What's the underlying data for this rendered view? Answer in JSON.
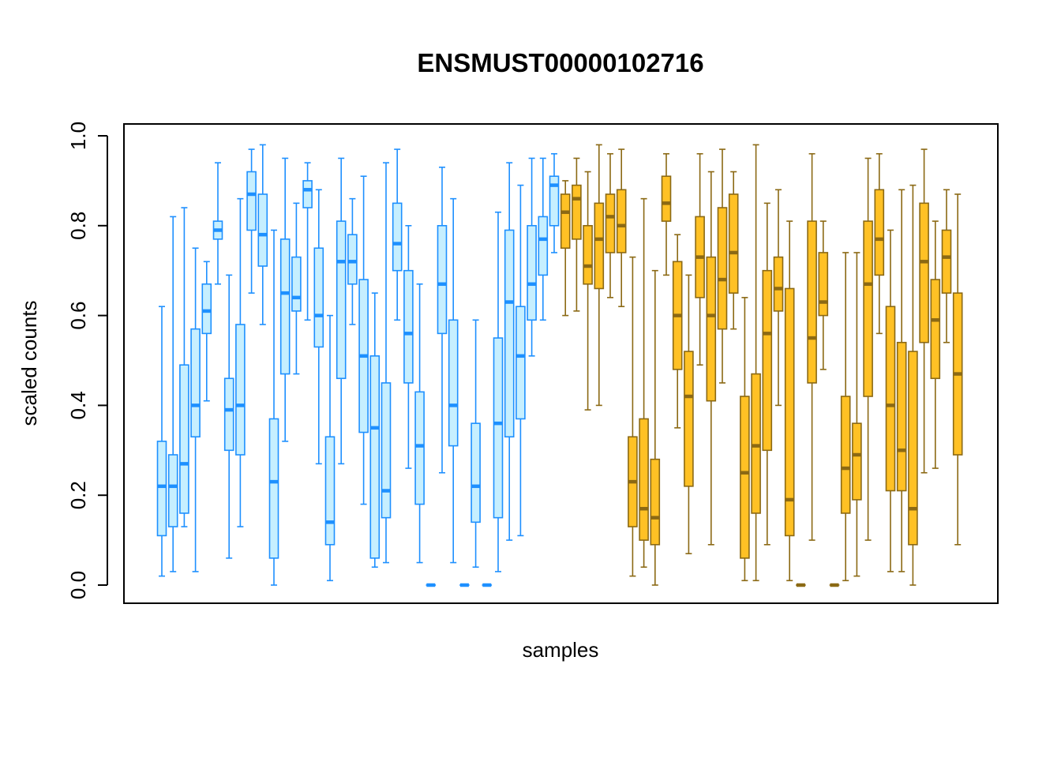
{
  "chart_data": {
    "type": "boxplot",
    "title": "ENSMUST00000102716",
    "xlabel": "samples",
    "ylabel": "scaled counts",
    "ylim": [
      0,
      1
    ],
    "yticks": [
      "0.0",
      "0.2",
      "0.4",
      "0.6",
      "0.8",
      "1.0"
    ],
    "grid": false,
    "legend": "none",
    "colors": {
      "group1_fill": "#c6efff",
      "group1_line": "#1e90ff",
      "group2_fill": "#ffc125",
      "group2_line": "#8b6914"
    },
    "series": [
      {
        "group": 1,
        "boxes": [
          {
            "min": 0.02,
            "q1": 0.11,
            "median": 0.22,
            "q3": 0.32,
            "max": 0.62
          },
          {
            "min": 0.03,
            "q1": 0.13,
            "median": 0.22,
            "q3": 0.29,
            "max": 0.82
          },
          {
            "min": 0.13,
            "q1": 0.16,
            "median": 0.27,
            "q3": 0.49,
            "max": 0.84
          },
          {
            "min": 0.03,
            "q1": 0.33,
            "median": 0.4,
            "q3": 0.57,
            "max": 0.75
          },
          {
            "min": 0.41,
            "q1": 0.56,
            "median": 0.61,
            "q3": 0.67,
            "max": 0.72
          },
          {
            "min": 0.67,
            "q1": 0.77,
            "median": 0.79,
            "q3": 0.81,
            "max": 0.94
          },
          {
            "min": 0.06,
            "q1": 0.3,
            "median": 0.39,
            "q3": 0.46,
            "max": 0.69
          },
          {
            "min": 0.13,
            "q1": 0.29,
            "median": 0.4,
            "q3": 0.58,
            "max": 0.86
          },
          {
            "min": 0.65,
            "q1": 0.79,
            "median": 0.87,
            "q3": 0.92,
            "max": 0.97
          },
          {
            "min": 0.58,
            "q1": 0.71,
            "median": 0.78,
            "q3": 0.87,
            "max": 0.98
          },
          {
            "min": 0.0,
            "q1": 0.06,
            "median": 0.23,
            "q3": 0.37,
            "max": 0.79
          },
          {
            "min": 0.32,
            "q1": 0.47,
            "median": 0.65,
            "q3": 0.77,
            "max": 0.95
          },
          {
            "min": 0.47,
            "q1": 0.61,
            "median": 0.64,
            "q3": 0.73,
            "max": 0.85
          },
          {
            "min": 0.59,
            "q1": 0.84,
            "median": 0.88,
            "q3": 0.9,
            "max": 0.94
          },
          {
            "min": 0.27,
            "q1": 0.53,
            "median": 0.6,
            "q3": 0.75,
            "max": 0.88
          },
          {
            "min": 0.01,
            "q1": 0.09,
            "median": 0.14,
            "q3": 0.33,
            "max": 0.6
          },
          {
            "min": 0.27,
            "q1": 0.46,
            "median": 0.72,
            "q3": 0.81,
            "max": 0.95
          },
          {
            "min": 0.58,
            "q1": 0.67,
            "median": 0.72,
            "q3": 0.78,
            "max": 0.86
          },
          {
            "min": 0.18,
            "q1": 0.34,
            "median": 0.51,
            "q3": 0.68,
            "max": 0.91
          },
          {
            "min": 0.04,
            "q1": 0.06,
            "median": 0.35,
            "q3": 0.51,
            "max": 0.65
          },
          {
            "min": 0.05,
            "q1": 0.15,
            "median": 0.21,
            "q3": 0.45,
            "max": 0.94
          },
          {
            "min": 0.59,
            "q1": 0.7,
            "median": 0.76,
            "q3": 0.85,
            "max": 0.97
          },
          {
            "min": 0.26,
            "q1": 0.45,
            "median": 0.56,
            "q3": 0.7,
            "max": 0.8
          },
          {
            "min": 0.05,
            "q1": 0.18,
            "median": 0.31,
            "q3": 0.43,
            "max": 0.67
          },
          {
            "min": 0.0,
            "q1": 0.0,
            "median": 0.0,
            "q3": 0.0,
            "max": 0.0
          },
          {
            "min": 0.25,
            "q1": 0.56,
            "median": 0.67,
            "q3": 0.8,
            "max": 0.93
          },
          {
            "min": 0.05,
            "q1": 0.31,
            "median": 0.4,
            "q3": 0.59,
            "max": 0.86
          },
          {
            "min": 0.0,
            "q1": 0.0,
            "median": 0.0,
            "q3": 0.0,
            "max": 0.0
          },
          {
            "min": 0.04,
            "q1": 0.14,
            "median": 0.22,
            "q3": 0.36,
            "max": 0.59
          },
          {
            "min": 0.0,
            "q1": 0.0,
            "median": 0.0,
            "q3": 0.0,
            "max": 0.0
          },
          {
            "min": 0.03,
            "q1": 0.15,
            "median": 0.36,
            "q3": 0.55,
            "max": 0.83
          },
          {
            "min": 0.1,
            "q1": 0.33,
            "median": 0.63,
            "q3": 0.79,
            "max": 0.94
          },
          {
            "min": 0.11,
            "q1": 0.37,
            "median": 0.51,
            "q3": 0.62,
            "max": 0.89
          },
          {
            "min": 0.51,
            "q1": 0.59,
            "median": 0.67,
            "q3": 0.8,
            "max": 0.95
          },
          {
            "min": 0.59,
            "q1": 0.69,
            "median": 0.77,
            "q3": 0.82,
            "max": 0.95
          },
          {
            "min": 0.74,
            "q1": 0.8,
            "median": 0.89,
            "q3": 0.91,
            "max": 0.96
          }
        ]
      },
      {
        "group": 2,
        "boxes": [
          {
            "min": 0.6,
            "q1": 0.75,
            "median": 0.83,
            "q3": 0.87,
            "max": 0.9
          },
          {
            "min": 0.61,
            "q1": 0.77,
            "median": 0.86,
            "q3": 0.89,
            "max": 0.95
          },
          {
            "min": 0.39,
            "q1": 0.67,
            "median": 0.71,
            "q3": 0.8,
            "max": 0.92
          },
          {
            "min": 0.4,
            "q1": 0.66,
            "median": 0.77,
            "q3": 0.85,
            "max": 0.98
          },
          {
            "min": 0.64,
            "q1": 0.74,
            "median": 0.82,
            "q3": 0.87,
            "max": 0.96
          },
          {
            "min": 0.62,
            "q1": 0.74,
            "median": 0.8,
            "q3": 0.88,
            "max": 0.97
          },
          {
            "min": 0.02,
            "q1": 0.13,
            "median": 0.23,
            "q3": 0.33,
            "max": 0.73
          },
          {
            "min": 0.04,
            "q1": 0.1,
            "median": 0.17,
            "q3": 0.37,
            "max": 0.86
          },
          {
            "min": 0.0,
            "q1": 0.09,
            "median": 0.15,
            "q3": 0.28,
            "max": 0.7
          },
          {
            "min": 0.69,
            "q1": 0.81,
            "median": 0.85,
            "q3": 0.91,
            "max": 0.96
          },
          {
            "min": 0.35,
            "q1": 0.48,
            "median": 0.6,
            "q3": 0.72,
            "max": 0.78
          },
          {
            "min": 0.07,
            "q1": 0.22,
            "median": 0.42,
            "q3": 0.52,
            "max": 0.69
          },
          {
            "min": 0.49,
            "q1": 0.64,
            "median": 0.73,
            "q3": 0.82,
            "max": 0.96
          },
          {
            "min": 0.09,
            "q1": 0.41,
            "median": 0.6,
            "q3": 0.73,
            "max": 0.92
          },
          {
            "min": 0.45,
            "q1": 0.57,
            "median": 0.68,
            "q3": 0.84,
            "max": 0.97
          },
          {
            "min": 0.57,
            "q1": 0.65,
            "median": 0.74,
            "q3": 0.87,
            "max": 0.92
          },
          {
            "min": 0.01,
            "q1": 0.06,
            "median": 0.25,
            "q3": 0.42,
            "max": 0.64
          },
          {
            "min": 0.01,
            "q1": 0.16,
            "median": 0.31,
            "q3": 0.47,
            "max": 0.98
          },
          {
            "min": 0.09,
            "q1": 0.3,
            "median": 0.56,
            "q3": 0.7,
            "max": 0.85
          },
          {
            "min": 0.4,
            "q1": 0.61,
            "median": 0.66,
            "q3": 0.73,
            "max": 0.88
          },
          {
            "min": 0.01,
            "q1": 0.11,
            "median": 0.19,
            "q3": 0.66,
            "max": 0.81
          },
          {
            "min": 0.0,
            "q1": 0.0,
            "median": 0.0,
            "q3": 0.0,
            "max": 0.0
          },
          {
            "min": 0.1,
            "q1": 0.45,
            "median": 0.55,
            "q3": 0.81,
            "max": 0.96
          },
          {
            "min": 0.48,
            "q1": 0.6,
            "median": 0.63,
            "q3": 0.74,
            "max": 0.81
          },
          {
            "min": 0.0,
            "q1": 0.0,
            "median": 0.0,
            "q3": 0.0,
            "max": 0.0
          },
          {
            "min": 0.01,
            "q1": 0.16,
            "median": 0.26,
            "q3": 0.42,
            "max": 0.74
          },
          {
            "min": 0.02,
            "q1": 0.19,
            "median": 0.29,
            "q3": 0.36,
            "max": 0.74
          },
          {
            "min": 0.1,
            "q1": 0.42,
            "median": 0.67,
            "q3": 0.81,
            "max": 0.95
          },
          {
            "min": 0.56,
            "q1": 0.69,
            "median": 0.77,
            "q3": 0.88,
            "max": 0.96
          },
          {
            "min": 0.03,
            "q1": 0.21,
            "median": 0.4,
            "q3": 0.62,
            "max": 0.79
          },
          {
            "min": 0.03,
            "q1": 0.21,
            "median": 0.3,
            "q3": 0.54,
            "max": 0.88
          },
          {
            "min": 0.0,
            "q1": 0.09,
            "median": 0.17,
            "q3": 0.52,
            "max": 0.89
          },
          {
            "min": 0.25,
            "q1": 0.54,
            "median": 0.72,
            "q3": 0.85,
            "max": 0.97
          },
          {
            "min": 0.26,
            "q1": 0.46,
            "median": 0.59,
            "q3": 0.68,
            "max": 0.81
          },
          {
            "min": 0.54,
            "q1": 0.65,
            "median": 0.73,
            "q3": 0.79,
            "max": 0.88
          },
          {
            "min": 0.09,
            "q1": 0.29,
            "median": 0.47,
            "q3": 0.65,
            "max": 0.87
          }
        ]
      }
    ]
  }
}
